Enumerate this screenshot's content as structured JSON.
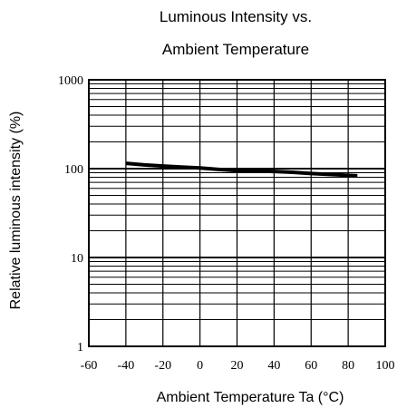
{
  "chart_data": {
    "type": "line",
    "title_lines": [
      "Luminous Intensity vs.",
      "Ambient Temperature"
    ],
    "xlabel": "Ambient Temperature Ta (°C)",
    "ylabel": "Relative luminous intensity   (%)",
    "xlim": [
      -60,
      100
    ],
    "ylim": [
      1,
      1000
    ],
    "yscale": "log",
    "x_ticks": [
      "-60",
      "-40",
      "-20",
      "0",
      "20",
      "40",
      "60",
      "80",
      "100"
    ],
    "y_ticks": [
      "1",
      "10",
      "100",
      "1000"
    ],
    "grid": true,
    "line_color": "#000000",
    "series": [
      {
        "x": [
          -40,
          -30,
          -20,
          -10,
          0,
          10,
          20,
          30,
          40,
          50,
          60,
          70,
          80,
          85
        ],
        "y": [
          115,
          110,
          107,
          104,
          102,
          98,
          95,
          94,
          93,
          91,
          88,
          86,
          84,
          83
        ]
      }
    ]
  }
}
